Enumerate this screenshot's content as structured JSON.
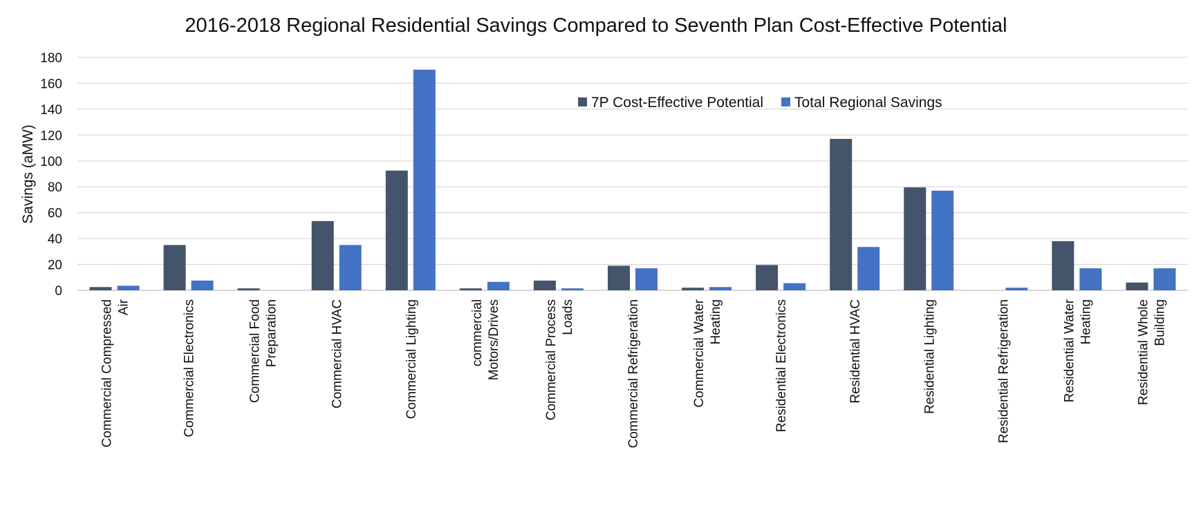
{
  "chart_data": {
    "type": "bar",
    "title": "2016-2018 Regional Residential Savings Compared to Seventh Plan Cost-Effective Potential",
    "xlabel": "",
    "ylabel": "Savings (aMW)",
    "ylim": [
      0,
      180
    ],
    "yticks": [
      0,
      20,
      40,
      60,
      80,
      100,
      120,
      140,
      160,
      180
    ],
    "grid": true,
    "legend_position": "top-right",
    "categories": [
      [
        "Commercial Compressed",
        "Air"
      ],
      [
        "Commercial Electronics"
      ],
      [
        "Commercial Food",
        "Preparation"
      ],
      [
        "Commercial HVAC"
      ],
      [
        "Commercial Lighting"
      ],
      [
        "commercial",
        "Motors/Drives"
      ],
      [
        "Commercial Process",
        "Loads"
      ],
      [
        "Commercial Refrigeration"
      ],
      [
        "Commercial Water",
        "Heating"
      ],
      [
        "Residential Electronics"
      ],
      [
        "Residential HVAC"
      ],
      [
        "Residential Lighting"
      ],
      [
        "Residential Refrigeration"
      ],
      [
        "Residential Water",
        "Heating"
      ],
      [
        "Residential Whole",
        "Building"
      ]
    ],
    "series": [
      {
        "name": "7P Cost-Effective Potential",
        "color": "#44546a",
        "values": [
          2.5,
          35,
          1.5,
          53.5,
          92.5,
          1.5,
          7.5,
          19,
          2,
          19.5,
          117,
          79.5,
          0,
          38,
          6
        ]
      },
      {
        "name": "Total Regional Savings",
        "color": "#4472c4",
        "values": [
          3.5,
          7.5,
          0,
          35,
          170.5,
          6.5,
          1.5,
          17,
          2.5,
          5.5,
          33.5,
          77,
          2,
          17,
          17
        ]
      }
    ]
  }
}
